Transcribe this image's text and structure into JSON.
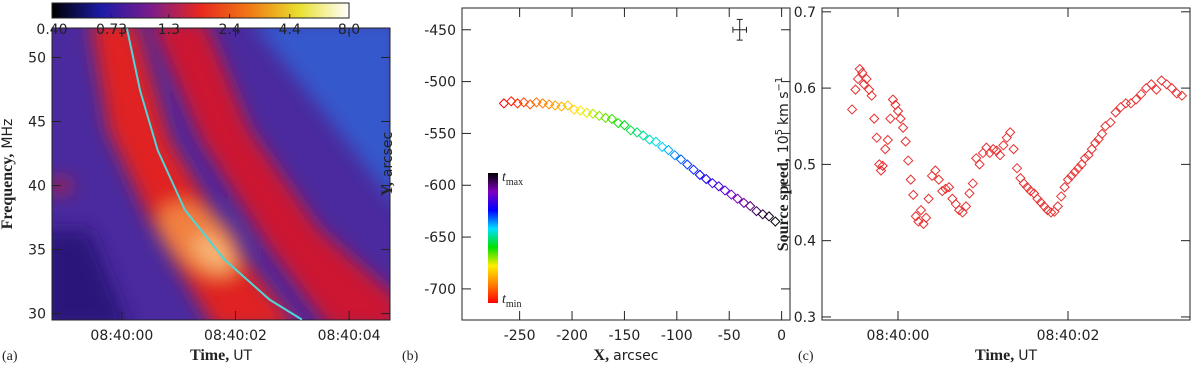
{
  "chart_data": [
    {
      "type": "heatmap",
      "panel_label": "(a)",
      "x_label": [
        "Time,",
        "UT"
      ],
      "y_label": [
        "Frequency,",
        "MHz"
      ],
      "xlim": [
        -1.23,
        4.72
      ],
      "ylim": [
        29.5,
        52.3
      ],
      "xticks": [
        {
          "value": 0,
          "label": "08:40:00"
        },
        {
          "value": 2,
          "label": "08:40:02"
        },
        {
          "value": 4,
          "label": "08:40:04"
        }
      ],
      "yticks": [
        30,
        35,
        40,
        45,
        50
      ],
      "colorbar": {
        "log": true,
        "lim": [
          0.4,
          8
        ],
        "ticks": [
          {
            "value": 0.4,
            "label": "0.40"
          },
          0.73,
          1.3,
          2.4,
          4.4,
          {
            "value": 8,
            "label": "8.0"
          }
        ],
        "colormap": [
          "#000000",
          "#1c1ca8",
          "#7a1c8c",
          "#e8281e",
          "#f07a14",
          "#e8e030",
          "#ffffff"
        ]
      },
      "curve": {
        "color": "#4fd6d6",
        "x": [
          0.09,
          0.32,
          0.63,
          1.11,
          1.81,
          2.6,
          3.17
        ],
        "y": [
          52.26,
          47.43,
          42.76,
          38.09,
          34.2,
          31.09,
          29.53
        ]
      }
    },
    {
      "type": "scatter",
      "panel_label": "(b)",
      "x_label": [
        "X,",
        "arcsec"
      ],
      "y_label": [
        "Y,",
        "arcsec"
      ],
      "xlim": [
        -305,
        8
      ],
      "ylim": [
        -730,
        -429
      ],
      "xticks": [
        -250,
        -200,
        -150,
        -100,
        -50,
        0
      ],
      "yticks": [
        -700,
        -650,
        -600,
        -550,
        -500,
        -450
      ],
      "colormap": [
        "#ff0000",
        "#ff8000",
        "#ffee00",
        "#00e000",
        "#00e0ff",
        "#0000ff",
        "#8000c0",
        "#000000"
      ],
      "colorbar_labels": [
        {
          "text": "t",
          "sub": "max"
        },
        {
          "text": "t",
          "sub": "min"
        }
      ],
      "error_cross": {
        "x": -40,
        "y": -450,
        "xerr": 6.5,
        "yerr": 10
      },
      "x": [
        -265,
        -258,
        -252,
        -246,
        -240,
        -234,
        -228,
        -222,
        -216,
        -210,
        -204,
        -198,
        -192,
        -186,
        -180,
        -174,
        -168,
        -162,
        -156,
        -150,
        -144,
        -138,
        -132,
        -126,
        -120,
        -114,
        -108,
        -102,
        -96,
        -90,
        -84,
        -78,
        -72,
        -66,
        -60,
        -54,
        -48,
        -42,
        -36,
        -30,
        -24,
        -18,
        -12,
        -6
      ],
      "values": [
        -521,
        -519,
        -521,
        -520,
        -522,
        -520,
        -521,
        -522,
        -523,
        -524,
        -523,
        -527,
        -528,
        -530,
        -531,
        -533,
        -535,
        -536,
        -540,
        -542,
        -547,
        -549,
        -552,
        -556,
        -558,
        -563,
        -566,
        -571,
        -575,
        -580,
        -585,
        -590,
        -594,
        -598,
        -601,
        -605,
        -609,
        -613,
        -617,
        -620,
        -625,
        -628,
        -630,
        -635
      ]
    },
    {
      "type": "scatter",
      "panel_label": "(c)",
      "color": "#e83030",
      "x_label": [
        "Time,",
        "UT"
      ],
      "y_label": [
        "Source speed,",
        "10",
        "5",
        "km s",
        "−1"
      ],
      "xlim": [
        -0.894,
        3.435
      ],
      "ylim": [
        0.296,
        0.705
      ],
      "xticks": [
        {
          "value": 0,
          "label": "08:40:00"
        },
        {
          "value": 2,
          "label": "08:40:02"
        }
      ],
      "yticks": [
        0.3,
        0.4,
        0.5,
        0.6,
        0.7
      ],
      "x": [
        -0.54,
        -0.5,
        -0.47,
        -0.45,
        -0.42,
        -0.4,
        -0.37,
        -0.34,
        -0.31,
        -0.28,
        -0.25,
        -0.22,
        -0.2,
        -0.18,
        -0.15,
        -0.12,
        -0.09,
        -0.06,
        -0.03,
        0,
        0.03,
        0.06,
        0.09,
        0.12,
        0.15,
        0.18,
        0.21,
        0.24,
        0.27,
        0.3,
        0.33,
        0.36,
        0.4,
        0.44,
        0.48,
        0.52,
        0.56,
        0.6,
        0.64,
        0.68,
        0.72,
        0.76,
        0.8,
        0.84,
        0.88,
        0.92,
        0.96,
        1,
        1.04,
        1.08,
        1.12,
        1.16,
        1.2,
        1.24,
        1.28,
        1.32,
        1.36,
        1.4,
        1.44,
        1.48,
        1.52,
        1.56,
        1.6,
        1.64,
        1.68,
        1.72,
        1.76,
        1.8,
        1.84,
        1.88,
        1.92,
        1.96,
        2,
        2.04,
        2.08,
        2.12,
        2.16,
        2.2,
        2.24,
        2.28,
        2.32,
        2.36,
        2.4,
        2.44,
        2.5,
        2.56,
        2.62,
        2.68,
        2.74,
        2.8,
        2.86,
        2.92,
        2.98,
        3.04,
        3.1,
        3.16,
        3.22,
        3.28,
        3.34
      ],
      "values": [
        0.572,
        0.598,
        0.612,
        0.625,
        0.62,
        0.605,
        0.612,
        0.598,
        0.59,
        0.56,
        0.535,
        0.5,
        0.492,
        0.498,
        0.52,
        0.532,
        0.56,
        0.585,
        0.578,
        0.57,
        0.56,
        0.548,
        0.53,
        0.505,
        0.48,
        0.46,
        0.432,
        0.425,
        0.44,
        0.422,
        0.43,
        0.455,
        0.485,
        0.492,
        0.48,
        0.465,
        0.468,
        0.47,
        0.455,
        0.448,
        0.44,
        0.437,
        0.445,
        0.462,
        0.475,
        0.508,
        0.5,
        0.515,
        0.522,
        0.515,
        0.52,
        0.518,
        0.512,
        0.525,
        0.535,
        0.542,
        0.52,
        0.495,
        0.482,
        0.475,
        0.47,
        0.465,
        0.462,
        0.455,
        0.45,
        0.445,
        0.44,
        0.437,
        0.438,
        0.445,
        0.458,
        0.47,
        0.48,
        0.485,
        0.49,
        0.495,
        0.5,
        0.508,
        0.512,
        0.52,
        0.528,
        0.533,
        0.54,
        0.55,
        0.555,
        0.568,
        0.575,
        0.58,
        0.58,
        0.585,
        0.592,
        0.6,
        0.605,
        0.598,
        0.61,
        0.605,
        0.6,
        0.593,
        0.59
      ]
    }
  ]
}
